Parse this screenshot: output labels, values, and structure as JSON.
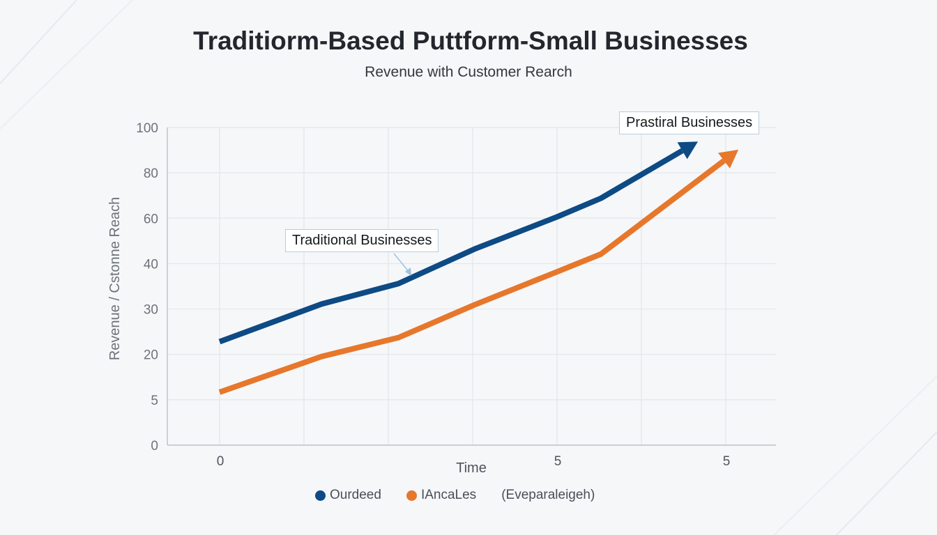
{
  "chart_data": {
    "type": "line",
    "title": "Traditiorm-Based Puttform-Small Businesses",
    "subtitle": "Revenue with Customer Rearch",
    "xlabel": "Time",
    "ylabel": "Revenue / Cstonne Reach",
    "y_ticks": [
      "100",
      "80",
      "60",
      "40",
      "30",
      "20",
      "5",
      "0"
    ],
    "y_tick_values": [
      100,
      80,
      60,
      40,
      30,
      20,
      5,
      0
    ],
    "x_ticks": [
      "0",
      "",
      "",
      "",
      "5",
      "",
      "5"
    ],
    "grid": true,
    "legend_position": "bottom",
    "legend": [
      {
        "label": "Ourdeed",
        "color": "#0e4a84"
      },
      {
        "label": "IAncaLes",
        "color": "#e6772b"
      },
      {
        "label": "(Eveparaleigeh)",
        "color": null
      }
    ],
    "annotations": [
      {
        "text": "Prastiral Businesses"
      },
      {
        "text": "Traditional Businesses"
      }
    ],
    "series": [
      {
        "color": "#0e4a84",
        "x": [
          0,
          1.21,
          2.12,
          3.02,
          4.0,
          4.52,
          5.67
        ],
        "y": [
          22.8,
          31.1,
          35.6,
          46.4,
          60.6,
          68.8,
          93.8
        ]
      },
      {
        "color": "#e6772b",
        "x": [
          0,
          1.21,
          2.12,
          3.02,
          4.0,
          4.52,
          6.15
        ],
        "y": [
          7.5,
          19.3,
          23.7,
          30.9,
          38.2,
          44.2,
          90.2
        ]
      }
    ]
  }
}
